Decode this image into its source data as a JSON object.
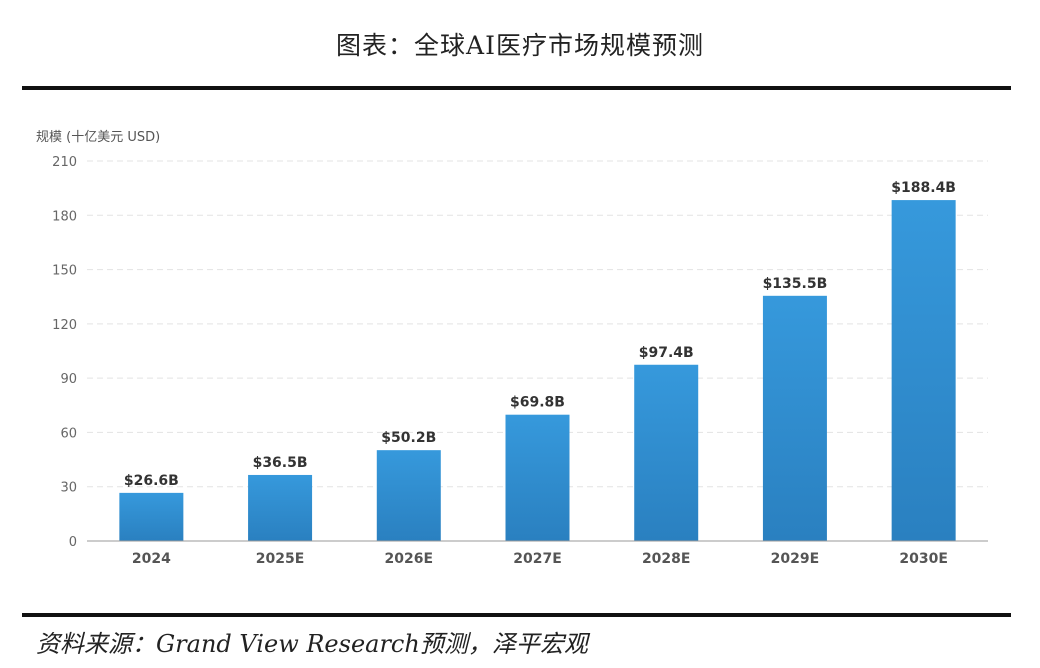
{
  "figure": {
    "title": "图表：全球AI医疗市场规模预测",
    "source": "资料来源：Grand View Research预测，泽平宏观"
  },
  "chart_data": {
    "type": "bar",
    "title": "",
    "ylabel": "规模 (十亿美元 USD)",
    "xlabel": "",
    "categories": [
      "2024",
      "2025E",
      "2026E",
      "2027E",
      "2028E",
      "2029E",
      "2030E"
    ],
    "values": [
      26.6,
      36.5,
      50.2,
      69.8,
      97.4,
      135.5,
      188.4
    ],
    "data_labels": [
      "$26.6B",
      "$36.5B",
      "$50.2B",
      "$69.8B",
      "$97.4B",
      "$135.5B",
      "$188.4B"
    ],
    "ylim": [
      0,
      210
    ],
    "yticks": [
      0,
      30,
      60,
      90,
      120,
      150,
      180,
      210
    ],
    "grid": true,
    "colors": {
      "bar_top": "#3699dc",
      "bar_bottom": "#2a80c0",
      "grid": "#e3e3e3",
      "axis": "#999999"
    }
  }
}
